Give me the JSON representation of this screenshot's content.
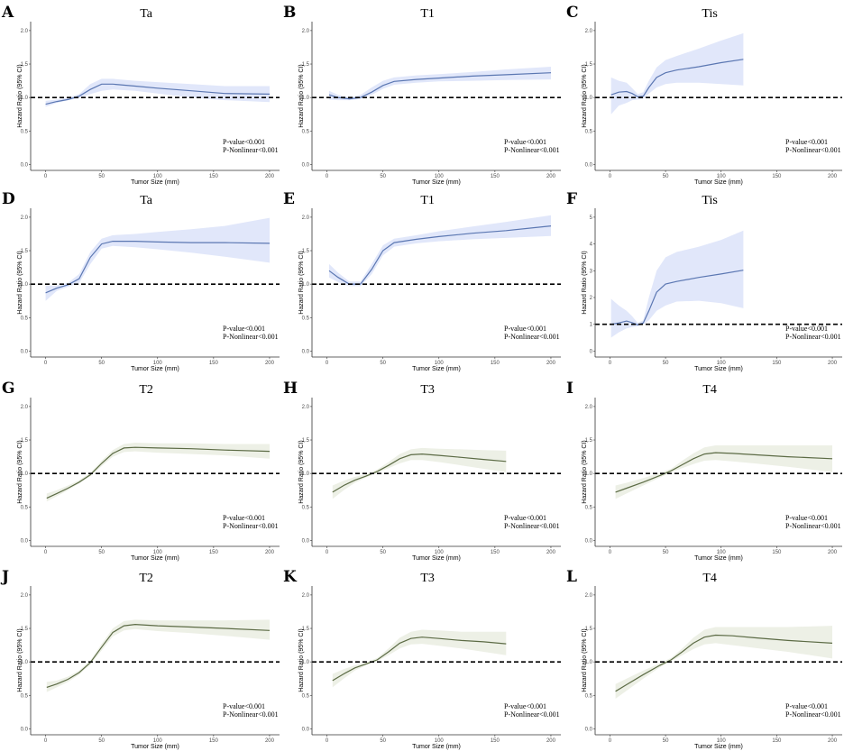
{
  "colors": {
    "blue_band": "#e1e7fa",
    "blue_line": "#5b77b2",
    "green_band": "#edf0e6",
    "green_line": "#5c6b45"
  },
  "chart_data": [
    {
      "type": "line",
      "letter": "A",
      "title": "Ta",
      "xlabel": "Tumor Size (mm)",
      "ylabel": "Hazard Ratio (95% CI)",
      "xlim": [
        0,
        200
      ],
      "ylim": [
        0,
        2.0
      ],
      "xticks": [
        0,
        50,
        100,
        150,
        200
      ],
      "yticks": [
        "0.0",
        "0.5",
        "1.0",
        "1.5",
        "2.0"
      ],
      "reference_line": 1.0,
      "color": "blue",
      "pvalue": "P-value<0.001",
      "pnonlinear": "P-Nonlinear<0.001",
      "x": [
        0,
        10,
        20,
        30,
        40,
        50,
        60,
        80,
        100,
        130,
        160,
        200
      ],
      "hr": [
        0.9,
        0.94,
        0.97,
        1.02,
        1.12,
        1.2,
        1.2,
        1.17,
        1.14,
        1.1,
        1.06,
        1.05
      ],
      "lower": [
        0.86,
        0.92,
        0.96,
        0.99,
        1.05,
        1.1,
        1.12,
        1.1,
        1.06,
        1.0,
        0.96,
        0.93
      ],
      "upper": [
        0.95,
        0.97,
        1.0,
        1.05,
        1.2,
        1.28,
        1.28,
        1.25,
        1.23,
        1.2,
        1.17,
        1.17
      ]
    },
    {
      "type": "line",
      "letter": "B",
      "title": "T1",
      "xlabel": "Tumor Size (mm)",
      "ylabel": "Hazard Ratio (95% CI)",
      "xlim": [
        0,
        200
      ],
      "ylim": [
        0,
        2.0
      ],
      "xticks": [
        0,
        50,
        100,
        150,
        200
      ],
      "yticks": [
        "0.0",
        "0.5",
        "1.0",
        "1.5",
        "2.0"
      ],
      "reference_line": 1.0,
      "color": "blue",
      "pvalue": "P-value<0.001",
      "pnonlinear": "P-Nonlinear<0.001",
      "x": [
        2,
        10,
        20,
        30,
        40,
        50,
        60,
        80,
        100,
        130,
        160,
        200
      ],
      "hr": [
        1.04,
        1.0,
        0.98,
        1.0,
        1.08,
        1.18,
        1.24,
        1.27,
        1.29,
        1.32,
        1.34,
        1.37
      ],
      "lower": [
        0.97,
        0.96,
        0.96,
        0.98,
        1.04,
        1.13,
        1.19,
        1.22,
        1.24,
        1.25,
        1.26,
        1.27
      ],
      "upper": [
        1.1,
        1.04,
        1.0,
        1.04,
        1.15,
        1.25,
        1.3,
        1.33,
        1.35,
        1.38,
        1.42,
        1.46
      ]
    },
    {
      "type": "line",
      "letter": "C",
      "title": "Tis",
      "xlabel": "Tumor Size (mm)",
      "ylabel": "Hazard Ratio (95% CI)",
      "xlim": [
        0,
        200
      ],
      "ylim": [
        0,
        2.0
      ],
      "xticks": [
        0,
        50,
        100,
        150,
        200
      ],
      "yticks": [
        "0.0",
        "0.5",
        "1.0",
        "1.5",
        "2.0"
      ],
      "reference_line": 1.0,
      "color": "blue",
      "pvalue": "P-value<0.001",
      "pnonlinear": "P-Nonlinear<0.001",
      "x": [
        1,
        8,
        15,
        20,
        25,
        30,
        35,
        42,
        50,
        60,
        80,
        100,
        120
      ],
      "hr": [
        1.04,
        1.08,
        1.09,
        1.06,
        1.01,
        1.02,
        1.15,
        1.3,
        1.37,
        1.41,
        1.46,
        1.52,
        1.57
      ],
      "lower": [
        0.75,
        0.88,
        0.92,
        0.96,
        0.97,
        0.98,
        1.06,
        1.15,
        1.2,
        1.22,
        1.22,
        1.2,
        1.18
      ],
      "upper": [
        1.3,
        1.25,
        1.22,
        1.14,
        1.05,
        1.08,
        1.25,
        1.45,
        1.56,
        1.62,
        1.73,
        1.85,
        1.96
      ]
    },
    {
      "type": "line",
      "letter": "D",
      "title": "Ta",
      "xlabel": "Tumor Size (mm)",
      "ylabel": "Hazard Ratio (95% CI)",
      "xlim": [
        0,
        200
      ],
      "ylim": [
        0,
        2.0
      ],
      "xticks": [
        0,
        50,
        100,
        150,
        200
      ],
      "yticks": [
        "0.0",
        "0.5",
        "1.0",
        "1.5",
        "2.0"
      ],
      "reference_line": 1.0,
      "color": "blue",
      "pvalue": "P-value<0.001",
      "pnonlinear": "P-Nonlinear<0.001",
      "x": [
        0,
        10,
        20,
        30,
        40,
        50,
        60,
        80,
        100,
        130,
        160,
        200
      ],
      "hr": [
        0.87,
        0.94,
        0.99,
        1.08,
        1.4,
        1.6,
        1.64,
        1.64,
        1.63,
        1.62,
        1.62,
        1.61
      ],
      "lower": [
        0.75,
        0.9,
        0.96,
        1.02,
        1.3,
        1.53,
        1.57,
        1.55,
        1.52,
        1.47,
        1.41,
        1.32
      ],
      "upper": [
        0.98,
        0.98,
        1.02,
        1.15,
        1.48,
        1.68,
        1.73,
        1.75,
        1.78,
        1.82,
        1.87,
        1.99
      ]
    },
    {
      "type": "line",
      "letter": "E",
      "title": "T1",
      "xlabel": "Tumor Size (mm)",
      "ylabel": "Hazard Ratio (95% CI)",
      "xlim": [
        0,
        200
      ],
      "ylim": [
        0,
        2.0
      ],
      "xticks": [
        0,
        50,
        100,
        150,
        200
      ],
      "yticks": [
        "0.0",
        "0.5",
        "1.0",
        "1.5",
        "2.0"
      ],
      "reference_line": 1.0,
      "color": "blue",
      "pvalue": "P-value<0.001",
      "pnonlinear": "P-Nonlinear<0.001",
      "x": [
        2,
        10,
        20,
        30,
        40,
        50,
        60,
        80,
        100,
        130,
        160,
        200
      ],
      "hr": [
        1.2,
        1.1,
        1.0,
        1.0,
        1.22,
        1.5,
        1.62,
        1.67,
        1.71,
        1.76,
        1.8,
        1.87
      ],
      "lower": [
        1.1,
        1.03,
        0.97,
        0.97,
        1.15,
        1.43,
        1.56,
        1.61,
        1.64,
        1.67,
        1.69,
        1.72
      ],
      "upper": [
        1.3,
        1.17,
        1.04,
        1.04,
        1.3,
        1.58,
        1.68,
        1.73,
        1.79,
        1.86,
        1.93,
        2.03
      ]
    },
    {
      "type": "line",
      "letter": "F",
      "title": "Tis",
      "xlabel": "Tumor Size (mm)",
      "ylabel": "Hazard Ratio (95% CI)",
      "xlim": [
        0,
        200
      ],
      "ylim": [
        0,
        5
      ],
      "xticks": [
        0,
        50,
        100,
        150,
        200
      ],
      "yticks": [
        "0",
        "1",
        "2",
        "3",
        "4",
        "5"
      ],
      "reference_line": 1.0,
      "color": "blue",
      "pvalue": "P-value<0.001",
      "pnonlinear": "P-Nonlinear<0.001",
      "x": [
        1,
        8,
        15,
        20,
        25,
        30,
        35,
        42,
        50,
        60,
        80,
        100,
        120
      ],
      "hr": [
        1.0,
        1.05,
        1.12,
        1.06,
        0.98,
        1.05,
        1.5,
        2.2,
        2.5,
        2.6,
        2.75,
        2.88,
        3.02
      ],
      "lower": [
        0.5,
        0.7,
        0.85,
        0.9,
        0.93,
        0.98,
        1.15,
        1.5,
        1.7,
        1.85,
        1.88,
        1.79,
        1.6
      ],
      "upper": [
        1.95,
        1.7,
        1.5,
        1.3,
        1.05,
        1.15,
        2.0,
        3.0,
        3.5,
        3.7,
        3.9,
        4.15,
        4.5
      ]
    },
    {
      "type": "line",
      "letter": "G",
      "title": "T2",
      "xlabel": "Tumor Size (mm)",
      "ylabel": "Hazard Ratio (95% CI)",
      "xlim": [
        0,
        200
      ],
      "ylim": [
        0,
        2.0
      ],
      "xticks": [
        0,
        50,
        100,
        150,
        200
      ],
      "yticks": [
        "0.0",
        "0.5",
        "1.0",
        "1.5",
        "2.0"
      ],
      "reference_line": 1.0,
      "color": "green",
      "pvalue": "P-value<0.001",
      "pnonlinear": "P-Nonlinear<0.001",
      "x": [
        1,
        10,
        20,
        30,
        40,
        50,
        60,
        70,
        80,
        100,
        130,
        160,
        200
      ],
      "hr": [
        0.63,
        0.7,
        0.78,
        0.87,
        0.98,
        1.15,
        1.3,
        1.38,
        1.39,
        1.38,
        1.37,
        1.35,
        1.33
      ],
      "lower": [
        0.58,
        0.66,
        0.75,
        0.85,
        0.96,
        1.11,
        1.25,
        1.32,
        1.33,
        1.31,
        1.29,
        1.27,
        1.22
      ],
      "upper": [
        0.7,
        0.75,
        0.82,
        0.9,
        1.01,
        1.19,
        1.35,
        1.44,
        1.46,
        1.45,
        1.45,
        1.44,
        1.44
      ]
    },
    {
      "type": "line",
      "letter": "H",
      "title": "T3",
      "xlabel": "Tumor Size (mm)",
      "ylabel": "Hazard Ratio (95% CI)",
      "xlim": [
        0,
        200
      ],
      "ylim": [
        0,
        2.0
      ],
      "xticks": [
        0,
        50,
        100,
        150,
        200
      ],
      "yticks": [
        "0.0",
        "0.5",
        "1.0",
        "1.5",
        "2.0"
      ],
      "reference_line": 1.0,
      "color": "green",
      "pvalue": "P-value<0.001",
      "pnonlinear": "P-Nonlinear<0.001",
      "x": [
        5,
        15,
        25,
        35,
        45,
        55,
        65,
        75,
        85,
        100,
        120,
        140,
        160
      ],
      "hr": [
        0.72,
        0.82,
        0.9,
        0.96,
        1.03,
        1.12,
        1.22,
        1.28,
        1.29,
        1.27,
        1.24,
        1.21,
        1.18
      ],
      "lower": [
        0.62,
        0.75,
        0.86,
        0.94,
        1.01,
        1.08,
        1.15,
        1.2,
        1.2,
        1.17,
        1.12,
        1.07,
        1.02
      ],
      "upper": [
        0.82,
        0.89,
        0.95,
        0.99,
        1.06,
        1.17,
        1.29,
        1.36,
        1.38,
        1.37,
        1.36,
        1.35,
        1.34
      ]
    },
    {
      "type": "line",
      "letter": "I",
      "title": "T4",
      "xlabel": "Tumor Size (mm)",
      "ylabel": "Hazard Ratio (95% CI)",
      "xlim": [
        0,
        200
      ],
      "ylim": [
        0,
        2.0
      ],
      "xticks": [
        0,
        50,
        100,
        150,
        200
      ],
      "yticks": [
        "0.0",
        "0.5",
        "1.0",
        "1.5",
        "2.0"
      ],
      "reference_line": 1.0,
      "color": "green",
      "pvalue": "P-value<0.001",
      "pnonlinear": "P-Nonlinear<0.001",
      "x": [
        5,
        15,
        30,
        45,
        55,
        65,
        75,
        85,
        95,
        110,
        130,
        160,
        200
      ],
      "hr": [
        0.72,
        0.78,
        0.87,
        0.97,
        1.04,
        1.13,
        1.22,
        1.29,
        1.31,
        1.3,
        1.28,
        1.25,
        1.22
      ],
      "lower": [
        0.62,
        0.7,
        0.82,
        0.94,
        1.02,
        1.08,
        1.14,
        1.19,
        1.2,
        1.18,
        1.15,
        1.1,
        1.02
      ],
      "upper": [
        0.82,
        0.86,
        0.93,
        1.01,
        1.07,
        1.19,
        1.3,
        1.39,
        1.42,
        1.42,
        1.42,
        1.42,
        1.42
      ]
    },
    {
      "type": "line",
      "letter": "J",
      "title": "T2",
      "xlabel": "Tumor Size (mm)",
      "ylabel": "Hazard Ratio (95% CI)",
      "xlim": [
        0,
        200
      ],
      "ylim": [
        0,
        2.0
      ],
      "xticks": [
        0,
        50,
        100,
        150,
        200
      ],
      "yticks": [
        "0.0",
        "0.5",
        "1.0",
        "1.5",
        "2.0"
      ],
      "reference_line": 1.0,
      "color": "green",
      "pvalue": "P-value<0.001",
      "pnonlinear": "P-Nonlinear<0.001",
      "x": [
        1,
        10,
        20,
        30,
        40,
        50,
        60,
        70,
        80,
        100,
        130,
        160,
        200
      ],
      "hr": [
        0.62,
        0.67,
        0.74,
        0.84,
        0.99,
        1.22,
        1.44,
        1.54,
        1.56,
        1.54,
        1.52,
        1.5,
        1.47
      ],
      "lower": [
        0.55,
        0.62,
        0.7,
        0.81,
        0.96,
        1.17,
        1.38,
        1.47,
        1.49,
        1.46,
        1.43,
        1.39,
        1.33
      ],
      "upper": [
        0.7,
        0.72,
        0.78,
        0.87,
        1.02,
        1.27,
        1.5,
        1.61,
        1.63,
        1.62,
        1.62,
        1.62,
        1.63
      ]
    },
    {
      "type": "line",
      "letter": "K",
      "title": "T3",
      "xlabel": "Tumor Size (mm)",
      "ylabel": "Hazard Ratio (95% CI)",
      "xlim": [
        0,
        200
      ],
      "ylim": [
        0,
        2.0
      ],
      "xticks": [
        0,
        50,
        100,
        150,
        200
      ],
      "yticks": [
        "0.0",
        "0.5",
        "1.0",
        "1.5",
        "2.0"
      ],
      "reference_line": 1.0,
      "color": "green",
      "pvalue": "P-value<0.001",
      "pnonlinear": "P-Nonlinear<0.001",
      "x": [
        5,
        15,
        25,
        35,
        45,
        55,
        65,
        75,
        85,
        100,
        120,
        140,
        160
      ],
      "hr": [
        0.72,
        0.82,
        0.91,
        0.97,
        1.03,
        1.15,
        1.28,
        1.35,
        1.37,
        1.35,
        1.32,
        1.3,
        1.27
      ],
      "lower": [
        0.62,
        0.75,
        0.87,
        0.95,
        1.01,
        1.1,
        1.2,
        1.26,
        1.27,
        1.24,
        1.2,
        1.15,
        1.1
      ],
      "upper": [
        0.82,
        0.89,
        0.95,
        0.99,
        1.06,
        1.2,
        1.36,
        1.45,
        1.48,
        1.47,
        1.45,
        1.45,
        1.45
      ]
    },
    {
      "type": "line",
      "letter": "L",
      "title": "T4",
      "xlabel": "Tumor Size (mm)",
      "ylabel": "Hazard Ratio (95% CI)",
      "xlim": [
        0,
        200
      ],
      "ylim": [
        0,
        2.0
      ],
      "xticks": [
        0,
        50,
        100,
        150,
        200
      ],
      "yticks": [
        "0.0",
        "0.5",
        "1.0",
        "1.5",
        "2.0"
      ],
      "reference_line": 1.0,
      "color": "green",
      "pvalue": "P-value<0.001",
      "pnonlinear": "P-Nonlinear<0.001",
      "x": [
        5,
        15,
        30,
        45,
        55,
        65,
        75,
        85,
        95,
        110,
        130,
        160,
        200
      ],
      "hr": [
        0.56,
        0.66,
        0.81,
        0.95,
        1.03,
        1.15,
        1.28,
        1.37,
        1.4,
        1.39,
        1.36,
        1.32,
        1.28
      ],
      "lower": [
        0.45,
        0.57,
        0.75,
        0.92,
        1.01,
        1.1,
        1.19,
        1.26,
        1.28,
        1.25,
        1.21,
        1.15,
        1.05
      ],
      "upper": [
        0.67,
        0.75,
        0.87,
        0.98,
        1.06,
        1.2,
        1.36,
        1.48,
        1.52,
        1.52,
        1.52,
        1.52,
        1.54
      ]
    }
  ]
}
